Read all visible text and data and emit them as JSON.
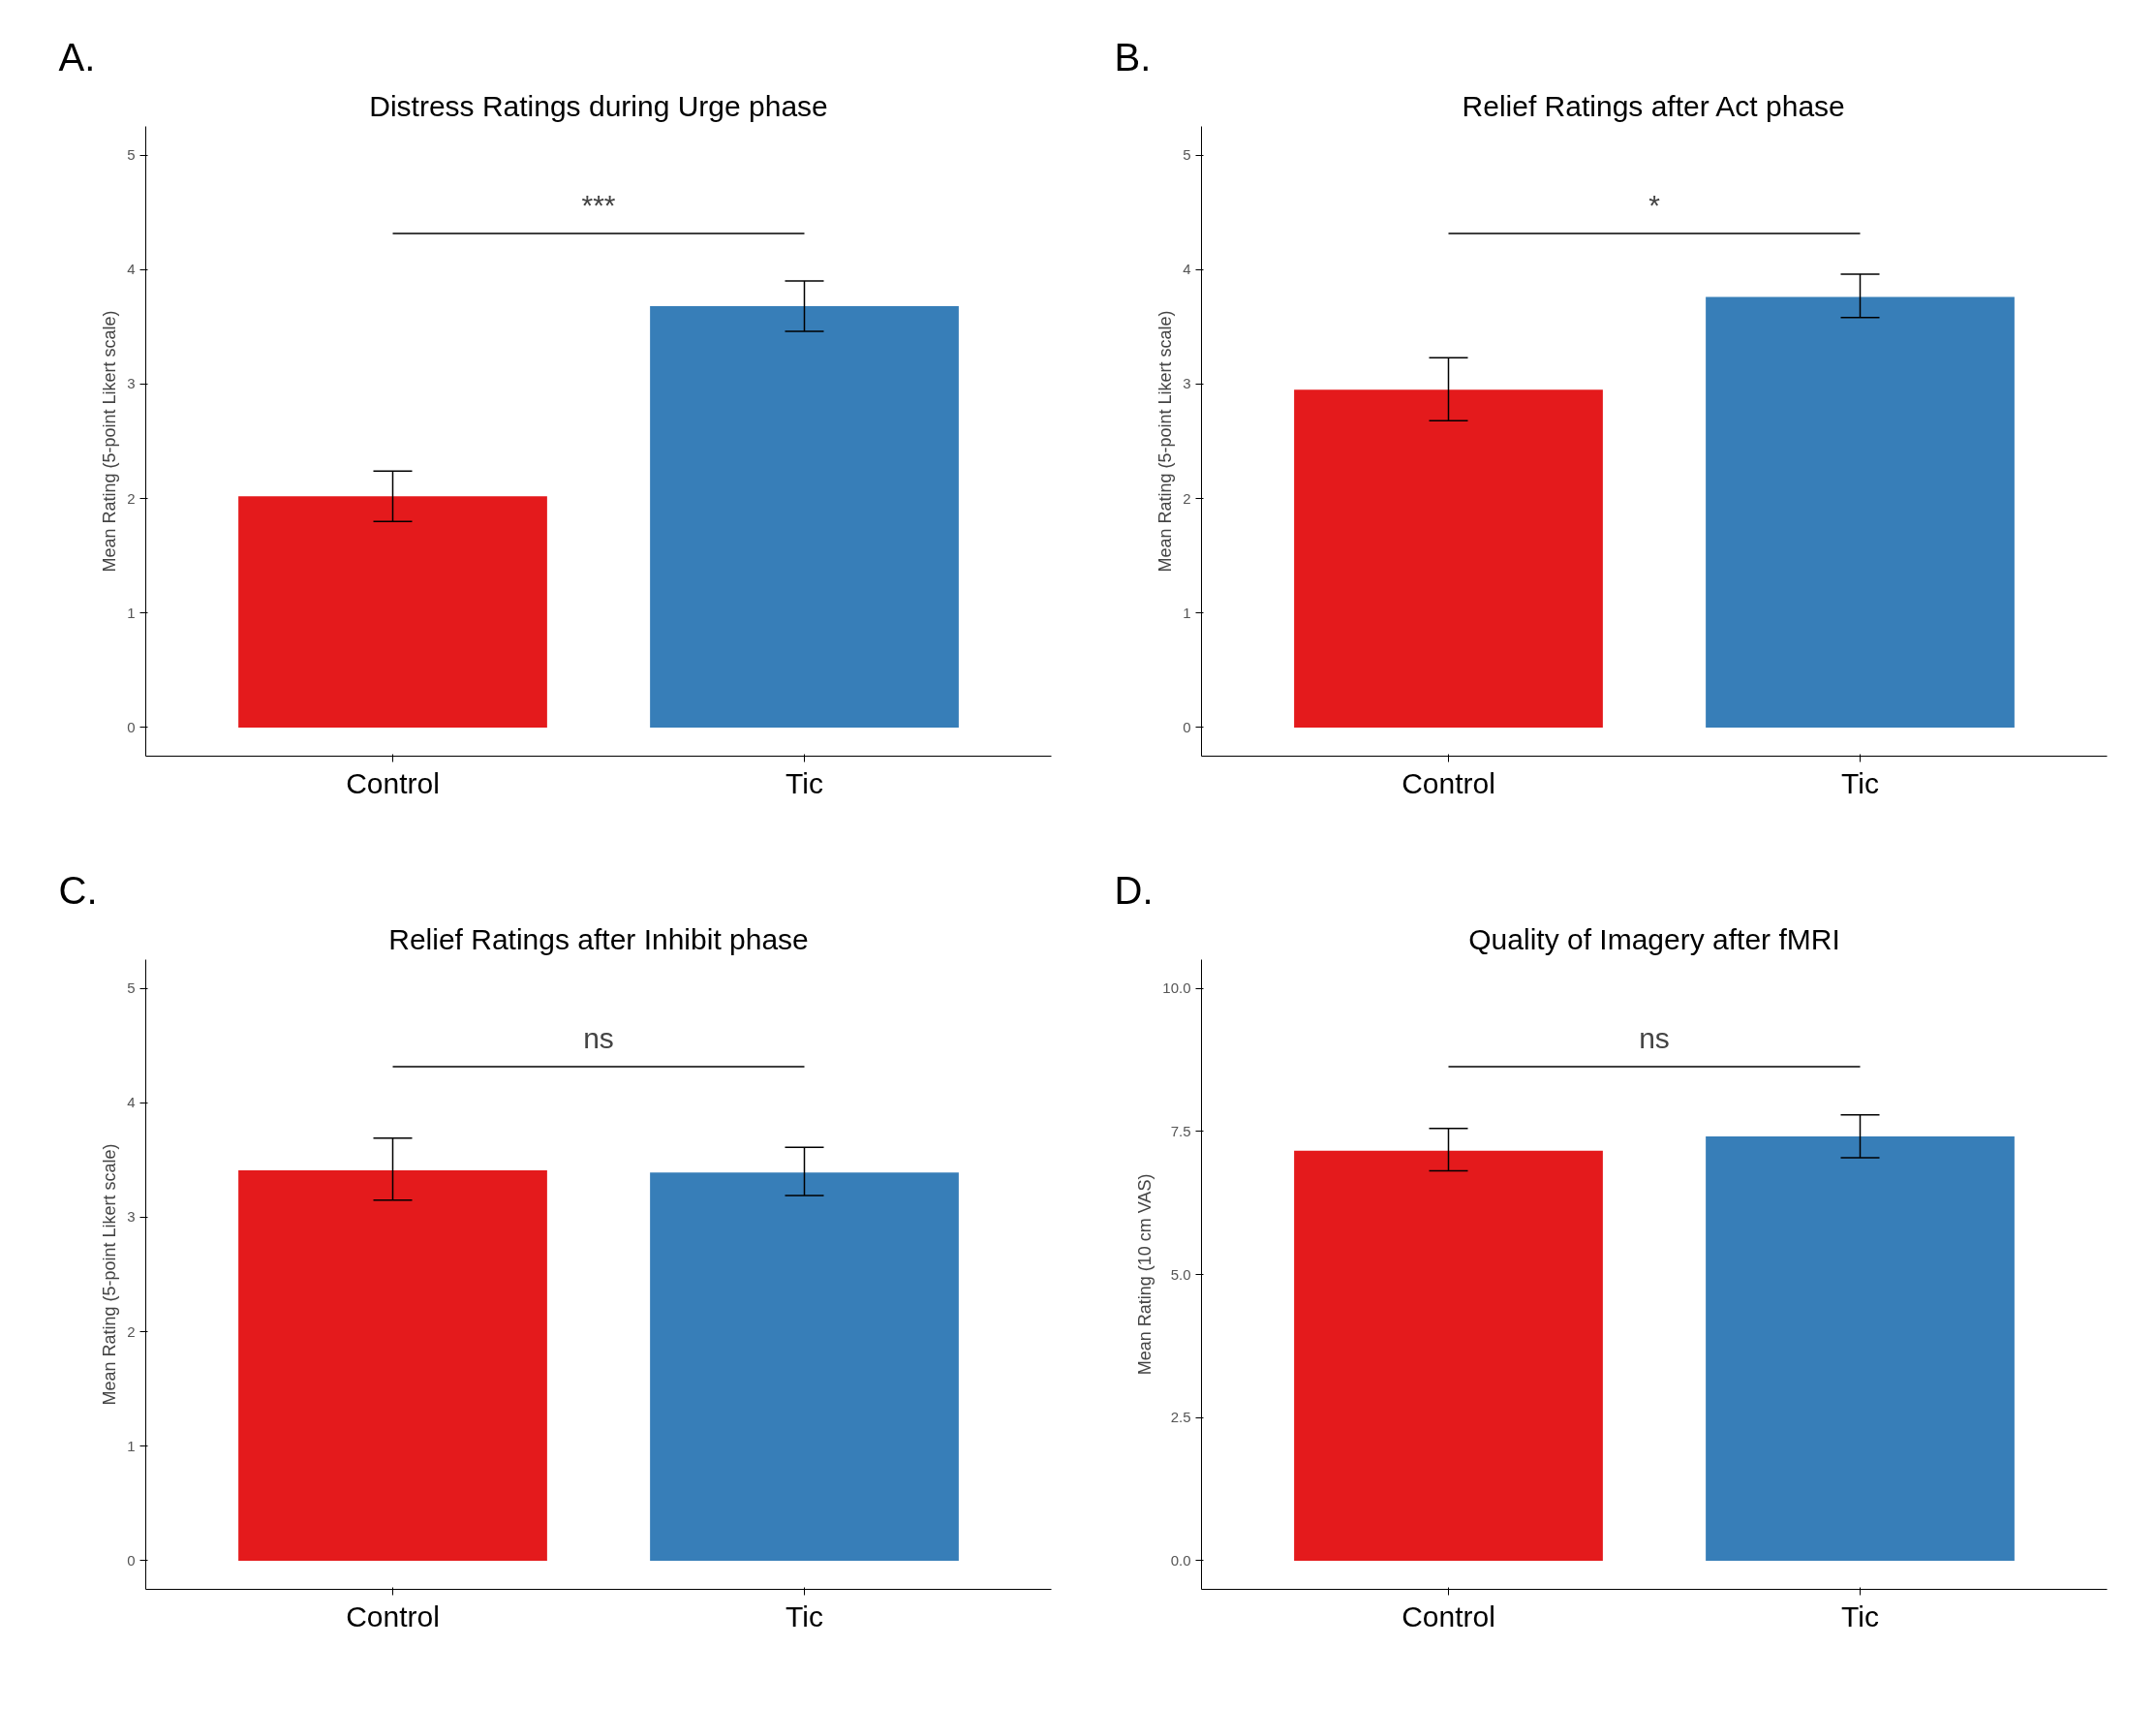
{
  "chart_data": [
    {
      "type": "bar",
      "title": "Distress Ratings during Urge phase",
      "ylabel": "Mean Rating (5-point Likert scale)",
      "categories": [
        "Control",
        "Tic"
      ],
      "values": [
        2.02,
        3.68
      ],
      "colors": [
        "#e41a1c",
        "#377eb8"
      ],
      "errors": [
        [
          1.8,
          2.24
        ],
        [
          3.46,
          3.9
        ]
      ],
      "ylim": [
        -0.25,
        5.25
      ],
      "yticks": [
        0,
        1,
        2,
        3,
        4,
        5
      ],
      "annotations": [
        "A.",
        "***"
      ]
    },
    {
      "type": "bar",
      "title": "Relief Ratings after Act phase",
      "ylabel": "Mean Rating (5-point Likert scale)",
      "categories": [
        "Control",
        "Tic"
      ],
      "values": [
        2.95,
        3.76
      ],
      "colors": [
        "#e41a1c",
        "#377eb8"
      ],
      "errors": [
        [
          2.68,
          3.23
        ],
        [
          3.58,
          3.96
        ]
      ],
      "ylim": [
        -0.25,
        5.25
      ],
      "yticks": [
        0,
        1,
        2,
        3,
        4,
        5
      ],
      "annotations": [
        "B.",
        "*"
      ]
    },
    {
      "type": "bar",
      "title": "Relief Ratings after Inhibit phase",
      "ylabel": "Mean Rating (5-point Likert scale)",
      "categories": [
        "Control",
        "Tic"
      ],
      "values": [
        3.41,
        3.39
      ],
      "colors": [
        "#e41a1c",
        "#377eb8"
      ],
      "errors": [
        [
          3.15,
          3.69
        ],
        [
          3.19,
          3.61
        ]
      ],
      "ylim": [
        -0.25,
        5.25
      ],
      "yticks": [
        0,
        1,
        2,
        3,
        4,
        5
      ],
      "annotations": [
        "C.",
        "ns"
      ]
    },
    {
      "type": "bar",
      "title": "Quality of Imagery after fMRI",
      "ylabel": "Mean Rating (10 cm VAS)",
      "categories": [
        "Control",
        "Tic"
      ],
      "values": [
        7.16,
        7.41
      ],
      "colors": [
        "#e41a1c",
        "#377eb8"
      ],
      "errors": [
        [
          6.81,
          7.55
        ],
        [
          7.04,
          7.79
        ]
      ],
      "ylim": [
        -0.5,
        10.5
      ],
      "yticks": [
        {
          "value": 0,
          "label": "0.0"
        },
        {
          "value": 2.5,
          "label": "2.5"
        },
        {
          "value": 5,
          "label": "5.0"
        },
        {
          "value": 7.5,
          "label": "7.5"
        },
        {
          "value": 10,
          "label": "10.0"
        }
      ],
      "annotations": [
        "D.",
        "ns"
      ]
    }
  ]
}
